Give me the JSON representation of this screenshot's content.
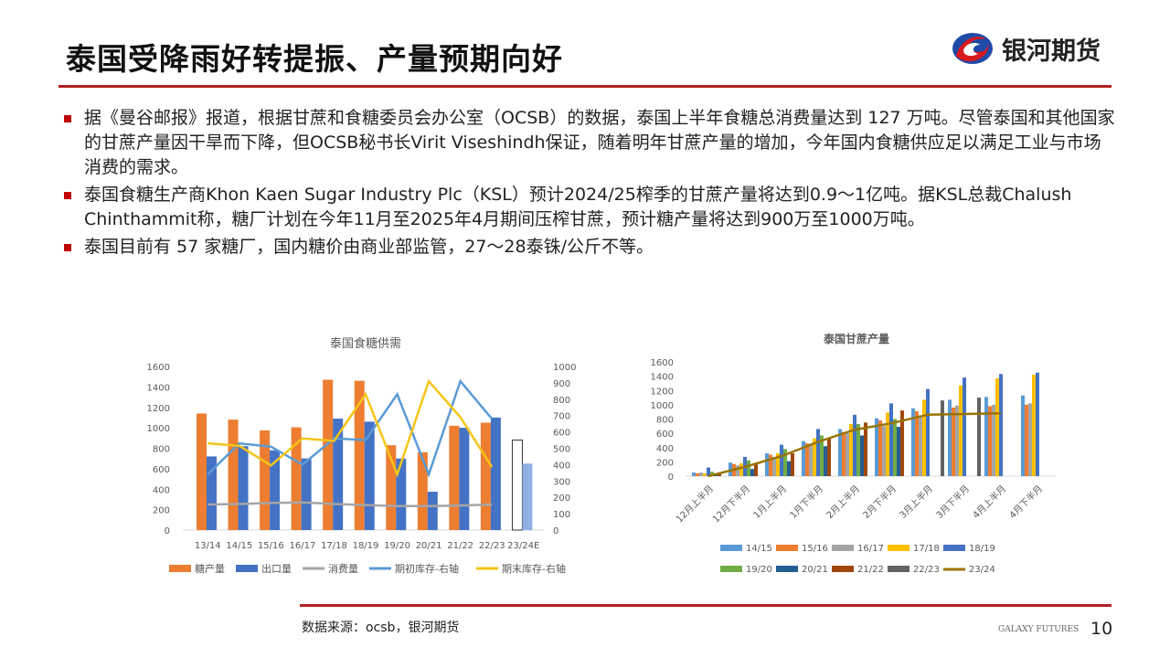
{
  "header": {
    "title": "泰国受降雨好转提振、产量预期向好",
    "logo_text": "银河期货"
  },
  "bullets": [
    "据《曼谷邮报》报道，根据甘蔗和食糖委员会办公室（OCSB）的数据，泰国上半年食糖总消费量达到 127 万吨。尽管泰国和其他国家的甘蔗产量因干旱而下降，但OCSB秘书长Virit Viseshindh保证，随着明年甘蔗产量的增加，今年国内食糖供应足以满足工业与市场消费的需求。",
    "泰国食糖生产商Khon Kaen Sugar Industry Plc（KSL）预计2024/25榨季的甘蔗产量将达到0.9～1亿吨。据KSL总裁Chalush Chinthammit称，糖厂计划在今年11月至2025年4月期间压榨甘蔗，预计糖产量将达到900万至1000万吨。",
    "泰国目前有 57 家糖厂，国内糖价由商业部监管，27～28泰铢/公斤不等。"
  ],
  "footer": {
    "source": "数据来源：ocsb，银河期货",
    "brand": "GALAXY FUTURES",
    "page": "10"
  },
  "colors": {
    "accent": "#b01e23"
  },
  "chart_data": [
    {
      "type": "bar",
      "title": "泰国食糖供需",
      "categories": [
        "13/14",
        "14/15",
        "15/16",
        "16/17",
        "17/18",
        "18/19",
        "19/20",
        "20/21",
        "21/22",
        "22/23",
        "23/24E"
      ],
      "ylim": [
        0,
        1600
      ],
      "yticks": [
        0,
        200,
        400,
        600,
        800,
        1000,
        1200,
        1400,
        1600
      ],
      "y2lim": [
        0,
        1000
      ],
      "y2ticks": [
        0,
        100,
        200,
        300,
        400,
        500,
        600,
        700,
        800,
        900,
        1000
      ],
      "series": [
        {
          "name": "糖产量",
          "kind": "bar",
          "color": "#ed7d31",
          "values": [
            1140,
            1080,
            975,
            1005,
            1470,
            1460,
            830,
            760,
            1020,
            1050,
            880
          ]
        },
        {
          "name": "出口量",
          "kind": "bar",
          "color": "#4472c4",
          "values": [
            720,
            820,
            780,
            700,
            1090,
            1060,
            700,
            375,
            1000,
            1100,
            650
          ]
        },
        {
          "name": "消费量",
          "kind": "line",
          "axis": "left",
          "color": "#a5a5a5",
          "values": [
            250,
            255,
            265,
            270,
            255,
            245,
            235,
            235,
            240,
            250,
            null
          ]
        },
        {
          "name": "期初库存-右轴",
          "kind": "line",
          "axis": "right",
          "color": "#5b9bd5",
          "values": [
            340,
            530,
            510,
            400,
            560,
            550,
            830,
            340,
            910,
            680,
            null
          ]
        },
        {
          "name": "期末库存-右轴",
          "kind": "line",
          "axis": "right",
          "color": "#f5c518",
          "values": [
            530,
            515,
            395,
            560,
            545,
            830,
            340,
            910,
            690,
            385,
            null
          ]
        }
      ]
    },
    {
      "type": "bar",
      "title": "泰国甘蔗产量",
      "categories": [
        "12月上半月",
        "12月下半月",
        "1月上半月",
        "1月下半月",
        "2月上半月",
        "2月下半月",
        "3月上半月",
        "3月下半月",
        "4月上半月",
        "4月下半月"
      ],
      "ylim": [
        0,
        1600
      ],
      "yticks": [
        0,
        200,
        400,
        600,
        800,
        1000,
        1200,
        1400,
        1600
      ],
      "series": [
        {
          "name": "14/15",
          "kind": "bar",
          "color": "#5b9bd5",
          "values": [
            50,
            190,
            320,
            490,
            660,
            810,
            950,
            1070,
            1110,
            1130
          ]
        },
        {
          "name": "15/16",
          "kind": "bar",
          "color": "#ed7d31",
          "values": [
            40,
            170,
            300,
            460,
            620,
            780,
            910,
            960,
            980,
            1000
          ]
        },
        {
          "name": "16/17",
          "kind": "bar",
          "color": "#a5a5a5",
          "values": [
            50,
            150,
            270,
            450,
            600,
            700,
            850,
            990,
            1000,
            1020
          ]
        },
        {
          "name": "17/18",
          "kind": "bar",
          "color": "#ffc000",
          "values": [
            40,
            180,
            320,
            530,
            730,
            890,
            1070,
            1270,
            1370,
            1420
          ]
        },
        {
          "name": "18/19",
          "kind": "bar",
          "color": "#4472c4",
          "values": [
            120,
            270,
            440,
            660,
            860,
            1020,
            1220,
            1380,
            1430,
            1450
          ]
        },
        {
          "name": "19/20",
          "kind": "bar",
          "color": "#70ad47",
          "values": [
            60,
            220,
            380,
            570,
            730,
            800,
            null,
            null,
            null,
            null
          ]
        },
        {
          "name": "20/21",
          "kind": "bar",
          "color": "#255e91",
          "values": [
            20,
            100,
            210,
            420,
            570,
            690,
            null,
            null,
            null,
            null
          ]
        },
        {
          "name": "21/22",
          "kind": "bar",
          "color": "#9e480e",
          "values": [
            30,
            170,
            320,
            530,
            750,
            920,
            null,
            null,
            null,
            null
          ]
        },
        {
          "name": "22/23",
          "kind": "bar",
          "color": "#636363",
          "values": [
            null,
            null,
            null,
            null,
            null,
            null,
            1060,
            1100,
            null,
            null
          ]
        },
        {
          "name": "23/24",
          "kind": "line",
          "color": "#997300",
          "values": [
            0,
            130,
            280,
            480,
            650,
            740,
            860,
            870,
            880,
            null
          ]
        }
      ]
    }
  ]
}
